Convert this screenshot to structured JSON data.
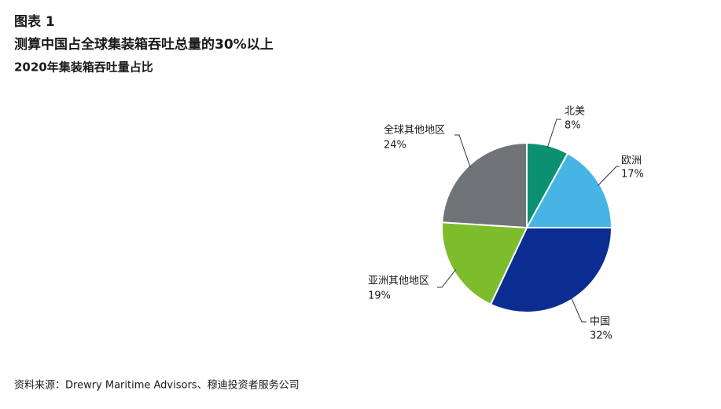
{
  "chart_data": {
    "type": "pie",
    "figure_label": "图表 1",
    "title": "测算中国占全球集装箱吞吐总量的30%以上",
    "subtitle": "2020年集装箱吞吐量占比",
    "source": "资料来源：Drewry Maritime Advisors、穆迪投资者服务公司",
    "categories": [
      "北美",
      "欧洲",
      "中国",
      "亚洲其他地区",
      "全球其他地区"
    ],
    "values": [
      8,
      17,
      32,
      19,
      24
    ],
    "value_labels": [
      "8%",
      "17%",
      "32%",
      "19%",
      "24%"
    ],
    "colors": [
      "#0b9171",
      "#46b5e5",
      "#0b2d92",
      "#7dbd2b",
      "#707478"
    ]
  }
}
